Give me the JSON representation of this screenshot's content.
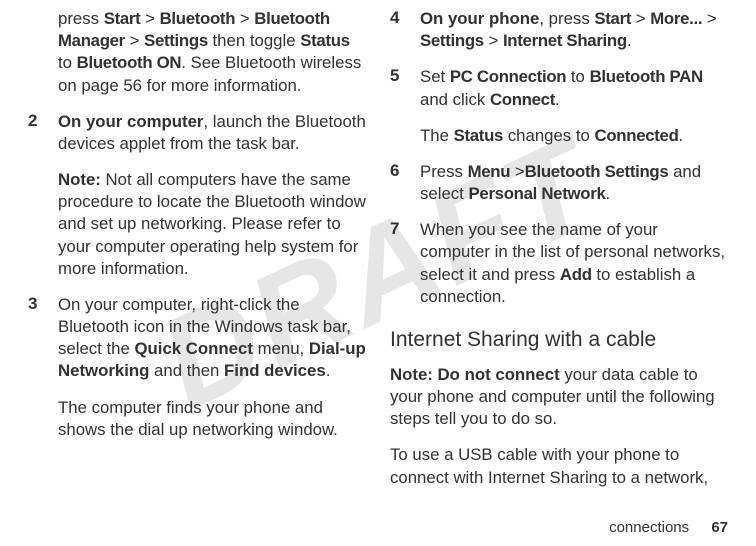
{
  "watermark": "DRAFT",
  "left": {
    "intro": {
      "pre": "press ",
      "k1": "Start",
      "s1": " > ",
      "k2": "Bluetooth",
      "s2": " > ",
      "k3": "Bluetooth Manager",
      "s3": " > ",
      "k4": "Settings",
      "mid": " then toggle ",
      "k5": "Status",
      "s5": " to ",
      "k6": "Bluetooth ON",
      "tail": ". See Bluetooth wireless on page 56 for more information."
    },
    "step2": {
      "num": "2",
      "lead": "On your computer",
      "body": ", launch the Bluetooth devices applet from the task bar."
    },
    "note2": {
      "lead": "Note:",
      "body": " Not all computers have the same procedure to locate the Bluetooth window and set up networking. Please refer to your computer operating help system for more information."
    },
    "step3": {
      "num": "3",
      "pre": "On your computer, right-click the Bluetooth icon in the Windows task bar, select the ",
      "b1": "Quick Connect",
      "m1": " menu, ",
      "b2": "Dial-up Networking",
      "m2": " and then ",
      "b3": "Find devices",
      "tail": "."
    },
    "after3": "The computer finds your phone and shows the dial up networking window."
  },
  "right": {
    "step4": {
      "num": "4",
      "lead": "On your phone",
      "mid": ", press ",
      "k1": "Start",
      "s1": " > ",
      "k2": "More...",
      "s2": " > ",
      "k3": "Settings",
      "s3": " > ",
      "k4": "Internet Sharing",
      "tail": "."
    },
    "step5": {
      "num": "5",
      "pre": "Set ",
      "k1": "PC Connection",
      "mid": " to ",
      "k2": "Bluetooth PAN",
      "m2": " and click ",
      "k3": "Connect",
      "tail": "."
    },
    "status": {
      "pre": "The ",
      "k1": "Status",
      "mid": " changes to ",
      "k2": "Connected",
      "tail": "."
    },
    "step6": {
      "num": "6",
      "pre": "Press ",
      "k1": "Menu",
      "s1": " >",
      "k2": "Bluetooth Settings",
      "mid": " and select ",
      "k3": "Personal Network",
      "tail": "."
    },
    "step7": {
      "num": "7",
      "pre": "When you see the name of your computer in the list of personal networks, select it and press ",
      "k1": "Add",
      "tail": " to establish a connection."
    },
    "subhead": "Internet Sharing with a cable",
    "noteCable": {
      "lead": "Note: Do not connect",
      "body": " your data cable to your phone and computer until the following steps tell you to do so."
    },
    "usb": "To use a USB cable with your phone to connect with Internet Sharing to a network,"
  },
  "footer": {
    "section": "connections",
    "page": "67"
  }
}
